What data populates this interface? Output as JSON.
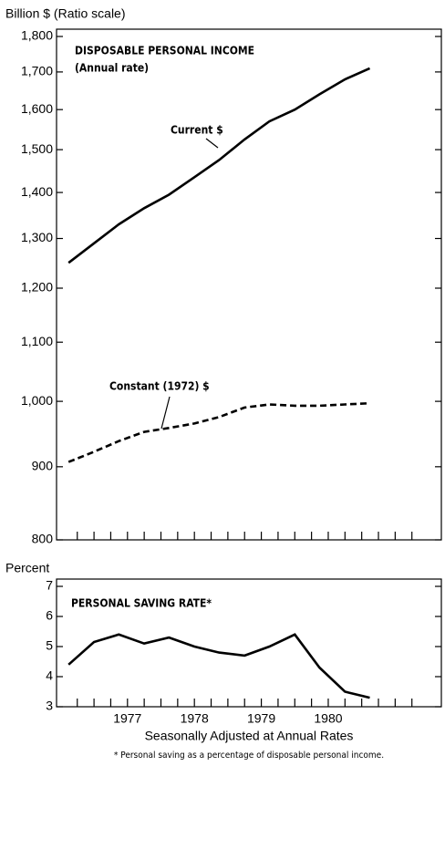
{
  "chart_data": [
    {
      "type": "line",
      "title": "DISPOSABLE PERSONAL INCOME",
      "subtitle": "(Annual rate)",
      "y_label": "Billion $ (Ratio scale)",
      "log_scale": true,
      "annotations": [
        "Current $",
        "Constant (1972) $"
      ],
      "x": [
        1976.62,
        1977.0,
        1977.37,
        1977.75,
        1978.12,
        1978.5,
        1978.87,
        1979.25,
        1979.62,
        1980.0,
        1980.37,
        1980.75,
        1981.12
      ],
      "series": [
        {
          "name": "Current $",
          "color": "#000000",
          "dash": false,
          "values": [
            1250,
            1290,
            1330,
            1365,
            1395,
            1435,
            1475,
            1525,
            1570,
            1600,
            1640,
            1680,
            1710
          ]
        },
        {
          "name": "Constant (1972) $",
          "color": "#000000",
          "dash": true,
          "values": [
            907,
            922,
            938,
            952,
            958,
            965,
            975,
            990,
            995,
            993,
            993,
            995,
            997
          ]
        }
      ],
      "xlim": [
        1976.44,
        1982.19
      ],
      "xminor": [
        1976.75,
        1977.0,
        1977.25,
        1977.5,
        1977.75,
        1978.0,
        1978.25,
        1978.5,
        1978.75,
        1979.0,
        1979.25,
        1979.5,
        1979.75,
        1980.0,
        1980.25,
        1980.5,
        1980.75,
        1981.0,
        1981.25,
        1981.5,
        1981.75
      ],
      "ylim": [
        800,
        1800
      ],
      "yticks": [
        800,
        900,
        {
          "value": 1000,
          "label": "1,000"
        },
        {
          "value": 1100,
          "label": "1,100"
        },
        {
          "value": 1200,
          "label": "1,200"
        },
        {
          "value": 1300,
          "label": "1,300"
        },
        {
          "value": 1400,
          "label": "1,400"
        },
        {
          "value": 1500,
          "label": "1,500"
        },
        {
          "value": 1600,
          "label": "1,600"
        },
        {
          "value": 1700,
          "label": "1,700"
        },
        {
          "value": 1800,
          "label": "1,800"
        }
      ]
    },
    {
      "type": "line",
      "title": "PERSONAL SAVING RATE*",
      "y_label": "Percent",
      "log_scale": false,
      "x_label": "Seasonally Adjusted at Annual Rates",
      "footnote": "* Personal saving as a percentage of disposable personal income.",
      "x": [
        1976.62,
        1977.0,
        1977.37,
        1977.75,
        1978.12,
        1978.5,
        1978.87,
        1979.25,
        1979.62,
        1980.0,
        1980.37,
        1980.75,
        1981.12
      ],
      "series": [
        {
          "name": "Personal saving rate",
          "color": "#000000",
          "dash": false,
          "values": [
            4.4,
            5.15,
            5.4,
            5.1,
            5.3,
            5.0,
            4.8,
            4.7,
            5.0,
            5.4,
            4.3,
            3.5,
            3.3
          ]
        }
      ],
      "xlim": [
        1976.44,
        1982.19
      ],
      "xminor": [
        1976.75,
        1977.0,
        1977.25,
        1977.5,
        1977.75,
        1978.0,
        1978.25,
        1978.5,
        1978.75,
        1979.0,
        1979.25,
        1979.5,
        1979.75,
        1980.0,
        1980.25,
        1980.5,
        1980.75,
        1981.0,
        1981.25,
        1981.5,
        1981.75
      ],
      "xticks": [
        {
          "value": 1977.5,
          "label": "1977"
        },
        {
          "value": 1978.5,
          "label": "1978"
        },
        {
          "value": 1979.5,
          "label": "1979"
        },
        {
          "value": 1980.5,
          "label": "1980"
        }
      ],
      "ylim": [
        3,
        7
      ],
      "yticks": [
        3,
        4,
        5,
        6,
        7
      ]
    }
  ]
}
